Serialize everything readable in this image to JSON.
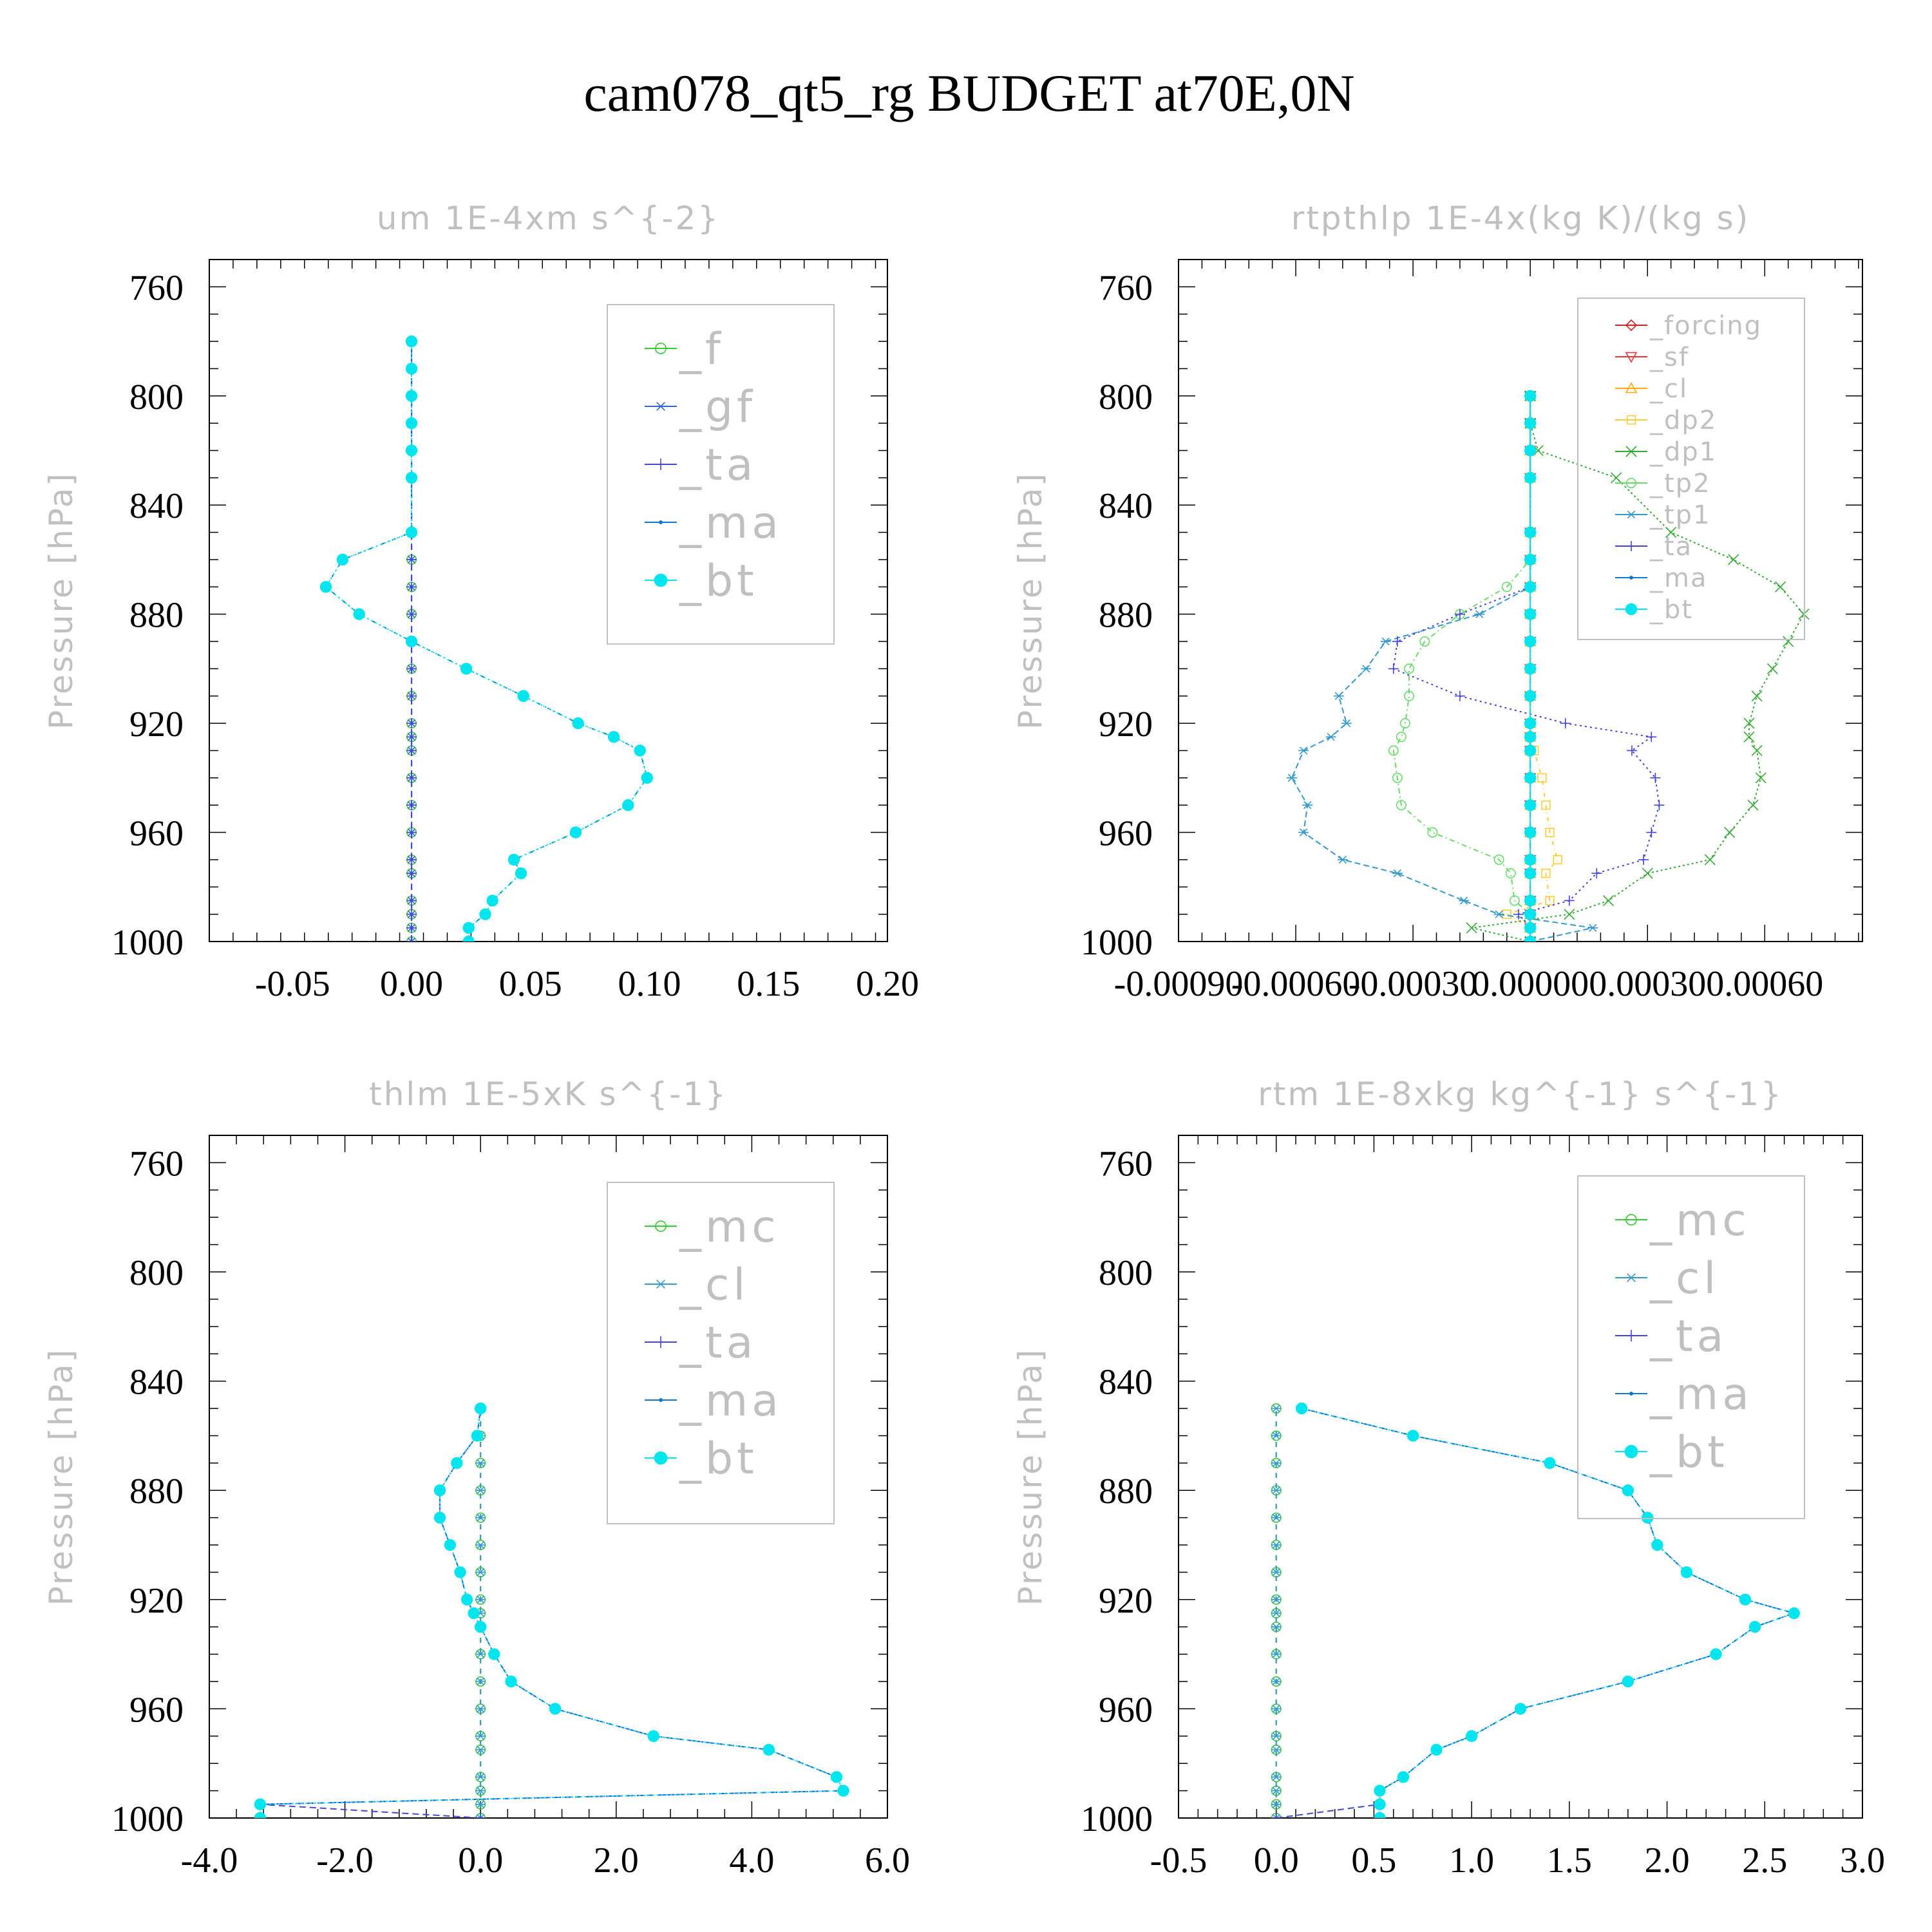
{
  "title": "cam078_qt5_rg  BUDGET at70E,0N",
  "chart_data": [
    {
      "type": "line",
      "title": "um  1E-4xm s^{-2}",
      "ylabel": "Pressure [hPa]",
      "xlabel": "",
      "ylim": [
        1000,
        750
      ],
      "xlim": [
        -0.085,
        0.2
      ],
      "xticks": [
        -0.05,
        0.0,
        0.05,
        0.1,
        0.15,
        0.2
      ],
      "xtick_labels": [
        "-0.05",
        "0.00",
        "0.05",
        "0.10",
        "0.15",
        "0.20"
      ],
      "yticks": [
        760,
        800,
        840,
        880,
        920,
        960,
        1000
      ],
      "ytick_labels": [
        "760",
        "800",
        "840",
        "880",
        "920",
        "960",
        "1000"
      ],
      "legend_position": "top-right",
      "y": [
        1000,
        995,
        990,
        985,
        975,
        970,
        960,
        950,
        940,
        930,
        925,
        920,
        910,
        900,
        890,
        880,
        870,
        860,
        850,
        830,
        820,
        810,
        800,
        790,
        780
      ],
      "series": [
        {
          "name": "_f",
          "color": "#33cc33",
          "marker": "circle-open",
          "values": [
            0,
            0,
            0,
            0,
            0,
            0,
            0,
            0,
            0,
            0,
            0,
            0,
            0,
            0,
            0,
            0,
            0,
            0,
            0,
            0,
            0,
            0,
            0,
            0,
            0
          ]
        },
        {
          "name": "_gf",
          "color": "#3366cc",
          "marker": "asterisk",
          "values": [
            0,
            0,
            0,
            0,
            0,
            0,
            0,
            0,
            0,
            0,
            0,
            0,
            0,
            0,
            0,
            0,
            0,
            0,
            0,
            0,
            0,
            0,
            0,
            0,
            0
          ]
        },
        {
          "name": "_ta",
          "color": "#4444dd",
          "marker": "plus",
          "values": [
            0,
            0,
            0,
            0,
            0,
            0,
            0,
            0,
            0,
            0,
            0,
            0,
            0,
            0,
            0,
            0,
            0,
            0,
            0,
            0,
            0,
            0,
            0,
            0,
            0
          ]
        },
        {
          "name": "_ma",
          "color": "#1177cc",
          "marker": "dot",
          "values": [
            0.024,
            0.024,
            0.031,
            0.034,
            0.046,
            0.043,
            0.069,
            0.091,
            0.099,
            0.096,
            0.085,
            0.07,
            0.047,
            0.023,
            0.0,
            -0.022,
            -0.036,
            -0.029,
            0.0,
            0.0,
            0.0,
            0.0,
            0.0,
            0.0,
            0.0
          ]
        },
        {
          "name": "_bt",
          "color": "#00e5ee",
          "marker": "disc",
          "values": [
            0.024,
            0.024,
            0.031,
            0.034,
            0.046,
            0.043,
            0.069,
            0.091,
            0.099,
            0.096,
            0.085,
            0.07,
            0.047,
            0.023,
            0.0,
            -0.022,
            -0.036,
            -0.029,
            0.0,
            0.0,
            0.0,
            0.0,
            0.0,
            0.0,
            0.0
          ]
        }
      ]
    },
    {
      "type": "line",
      "title": "rtpthlp  1E-4x(kg K)/(kg s)",
      "ylabel": "Pressure [hPa]",
      "xlabel": "",
      "ylim": [
        1000,
        750
      ],
      "xlim": [
        -0.0009,
        0.00085
      ],
      "xticks": [
        -0.0009,
        -0.0006,
        -0.0003,
        0.0,
        0.0003,
        0.0006
      ],
      "xtick_labels": [
        "-0.00090",
        "-0.00060",
        "-0.00030",
        "0.00000",
        "0.00030",
        "0.00060"
      ],
      "yticks": [
        760,
        800,
        840,
        880,
        920,
        960,
        1000
      ],
      "ytick_labels": [
        "760",
        "800",
        "840",
        "880",
        "920",
        "960",
        "1000"
      ],
      "legend_position": "top-right",
      "y": [
        1000,
        995,
        990,
        985,
        975,
        970,
        960,
        950,
        940,
        930,
        925,
        920,
        910,
        900,
        890,
        880,
        870,
        860,
        850,
        830,
        820,
        810,
        800
      ],
      "series": [
        {
          "name": "_forcing",
          "color": "#cc2222",
          "marker": "diamond",
          "values": [
            0,
            0,
            0,
            0,
            0,
            0,
            0,
            0,
            0,
            0,
            0,
            0,
            0,
            0,
            0,
            0,
            0,
            0,
            0,
            0,
            0,
            0,
            0
          ]
        },
        {
          "name": "_sf",
          "color": "#ee3333",
          "marker": "triangle-down",
          "values": [
            0,
            0,
            0,
            0,
            0,
            0,
            0,
            0,
            0,
            0,
            0,
            0,
            0,
            0,
            0,
            0,
            0,
            0,
            0,
            0,
            0,
            0,
            0
          ]
        },
        {
          "name": "_cl",
          "color": "#ffaa00",
          "marker": "triangle-up",
          "values": [
            0,
            0,
            0,
            0,
            0,
            0,
            0,
            0,
            0,
            0,
            0,
            0,
            0,
            0,
            0,
            0,
            0,
            0,
            0,
            0,
            0,
            0,
            0
          ]
        },
        {
          "name": "_dp2",
          "color": "#ffcc33",
          "marker": "square",
          "values": [
            0,
            0,
            -6e-05,
            5e-05,
            4e-05,
            7e-05,
            5e-05,
            4e-05,
            3e-05,
            1e-05,
            0,
            0,
            0,
            0,
            0,
            0,
            0,
            0,
            0,
            0,
            0,
            0,
            0
          ]
        },
        {
          "name": "_dp1",
          "color": "#33aa33",
          "marker": "cross",
          "values": [
            0,
            -0.00015,
            0.0001,
            0.0002,
            0.0003,
            0.00046,
            0.00051,
            0.00057,
            0.00059,
            0.00058,
            0.00056,
            0.00056,
            0.00058,
            0.00062,
            0.00066,
            0.0007,
            0.00064,
            0.00052,
            0.00036,
            0.00022,
            2e-05,
            0.0,
            0.0
          ]
        },
        {
          "name": "_tp2",
          "color": "#66dd66",
          "marker": "circle-open",
          "values": [
            0,
            0,
            0,
            -4e-05,
            -5e-05,
            -8e-05,
            -0.00025,
            -0.00033,
            -0.00034,
            -0.00035,
            -0.00033,
            -0.00032,
            -0.00031,
            -0.00031,
            -0.00027,
            -0.00018,
            -6e-05,
            0.0,
            0.0,
            0.0,
            0.0,
            0.0,
            0.0
          ]
        },
        {
          "name": "_tp1",
          "color": "#3399cc",
          "marker": "asterisk",
          "values": [
            0,
            0.00016,
            -8e-05,
            -0.00017,
            -0.00034,
            -0.00048,
            -0.00058,
            -0.00057,
            -0.00061,
            -0.00058,
            -0.00051,
            -0.00047,
            -0.00049,
            -0.00042,
            -0.00037,
            -0.00013,
            0.0,
            0.0,
            0.0,
            0.0,
            0.0,
            0.0,
            0.0
          ]
        },
        {
          "name": "_ta",
          "color": "#4444dd",
          "marker": "plus",
          "values": [
            0,
            0,
            -3e-05,
            0.0001,
            0.00017,
            0.00029,
            0.00031,
            0.00033,
            0.00032,
            0.00026,
            0.00031,
            9e-05,
            -0.00018,
            -0.00035,
            -0.00034,
            -0.00018,
            0.0,
            0.0,
            0.0,
            0.0,
            0.0,
            0.0,
            0.0
          ]
        },
        {
          "name": "_ma",
          "color": "#1177cc",
          "marker": "dot",
          "values": [
            0,
            0,
            0,
            0,
            0,
            0,
            0,
            0,
            0,
            0,
            0,
            0,
            0,
            0,
            0,
            0,
            0,
            0,
            0,
            0,
            0,
            0,
            0
          ]
        },
        {
          "name": "_bt",
          "color": "#00e5ee",
          "marker": "disc",
          "values": [
            0,
            0,
            0,
            0,
            0,
            0,
            0,
            0,
            0,
            0,
            0,
            0,
            0,
            0,
            0,
            0,
            0,
            0,
            0,
            0,
            0,
            0,
            0
          ]
        }
      ]
    },
    {
      "type": "line",
      "title": "thlm  1E-5xK s^{-1}",
      "ylabel": "Pressure [hPa]",
      "xlabel": "",
      "ylim": [
        1000,
        750
      ],
      "xlim": [
        -4.0,
        6.0
      ],
      "xticks": [
        -4.0,
        -2.0,
        0.0,
        2.0,
        4.0,
        6.0
      ],
      "xtick_labels": [
        "-4.0",
        "-2.0",
        "0.0",
        "2.0",
        "4.0",
        "6.0"
      ],
      "yticks": [
        760,
        800,
        840,
        880,
        920,
        960,
        1000
      ],
      "ytick_labels": [
        "760",
        "800",
        "840",
        "880",
        "920",
        "960",
        "1000"
      ],
      "legend_position": "top-right",
      "y": [
        1000,
        995,
        990,
        985,
        975,
        970,
        960,
        950,
        940,
        930,
        925,
        920,
        910,
        900,
        890,
        880,
        870,
        860,
        850
      ],
      "series": [
        {
          "name": "_mc",
          "color": "#33cc33",
          "marker": "circle-open",
          "values": [
            0,
            0,
            0,
            0,
            0,
            0,
            0,
            0,
            0,
            0,
            0,
            0,
            0,
            0,
            0,
            0,
            0,
            0,
            0
          ]
        },
        {
          "name": "_cl",
          "color": "#3399cc",
          "marker": "asterisk",
          "values": [
            0,
            0,
            0,
            0,
            0,
            0,
            0,
            0,
            0,
            0,
            0,
            0,
            0,
            0,
            0,
            0,
            0,
            0,
            0
          ]
        },
        {
          "name": "_ta",
          "color": "#4444dd",
          "marker": "plus",
          "values": [
            0,
            -3.25,
            5.35,
            5.25,
            4.25,
            2.55,
            1.1,
            0.45,
            0.2,
            0.0,
            -0.1,
            -0.2,
            -0.3,
            -0.45,
            -0.6,
            -0.6,
            -0.35,
            -0.05,
            0.0
          ]
        },
        {
          "name": "_ma",
          "color": "#1177cc",
          "marker": "dot",
          "values": [
            -3.25,
            -3.25,
            5.35,
            5.25,
            4.25,
            2.55,
            1.1,
            0.45,
            0.2,
            0.0,
            -0.1,
            -0.2,
            -0.3,
            -0.45,
            -0.6,
            -0.6,
            -0.35,
            -0.05,
            0.0
          ]
        },
        {
          "name": "_bt",
          "color": "#00e5ee",
          "marker": "disc",
          "values": [
            -3.25,
            -3.25,
            5.35,
            5.25,
            4.25,
            2.55,
            1.1,
            0.45,
            0.2,
            0.0,
            -0.1,
            -0.2,
            -0.3,
            -0.45,
            -0.6,
            -0.6,
            -0.35,
            -0.05,
            0.0
          ]
        }
      ]
    },
    {
      "type": "line",
      "title": "rtm  1E-8xkg kg^{-1} s^{-1}",
      "ylabel": "Pressure [hPa]",
      "xlabel": "",
      "ylim": [
        1000,
        750
      ],
      "xlim": [
        -0.5,
        3.0
      ],
      "xticks": [
        -0.5,
        0.0,
        0.5,
        1.0,
        1.5,
        2.0,
        2.5,
        3.0
      ],
      "xtick_labels": [
        "-0.5",
        "0.0",
        "0.5",
        "1.0",
        "1.5",
        "2.0",
        "2.5",
        "3.0"
      ],
      "yticks": [
        760,
        800,
        840,
        880,
        920,
        960,
        1000
      ],
      "ytick_labels": [
        "760",
        "800",
        "840",
        "880",
        "920",
        "960",
        "1000"
      ],
      "legend_position": "top-right",
      "y": [
        1000,
        995,
        990,
        985,
        975,
        970,
        960,
        950,
        940,
        930,
        925,
        920,
        910,
        900,
        890,
        880,
        870,
        860,
        850
      ],
      "series": [
        {
          "name": "_mc",
          "color": "#33cc33",
          "marker": "circle-open",
          "values": [
            0,
            0,
            0,
            0,
            0,
            0,
            0,
            0,
            0,
            0,
            0,
            0,
            0,
            0,
            0,
            0,
            0,
            0,
            0
          ]
        },
        {
          "name": "_cl",
          "color": "#3399cc",
          "marker": "asterisk",
          "values": [
            0,
            0,
            0,
            0,
            0,
            0,
            0,
            0,
            0,
            0,
            0,
            0,
            0,
            0,
            0,
            0,
            0,
            0,
            0
          ]
        },
        {
          "name": "_ta",
          "color": "#4444dd",
          "marker": "plus",
          "values": [
            0,
            0.53,
            0.53,
            0.65,
            0.82,
            1.0,
            1.25,
            1.8,
            2.25,
            2.45,
            2.65,
            2.4,
            2.1,
            1.95,
            1.9,
            1.8,
            1.4,
            0.7,
            0.13
          ]
        },
        {
          "name": "_ma",
          "color": "#1177cc",
          "marker": "dot",
          "values": [
            0.53,
            0.53,
            0.53,
            0.65,
            0.82,
            1.0,
            1.25,
            1.8,
            2.25,
            2.45,
            2.65,
            2.4,
            2.1,
            1.95,
            1.9,
            1.8,
            1.4,
            0.7,
            0.13
          ]
        },
        {
          "name": "_bt",
          "color": "#00e5ee",
          "marker": "disc",
          "values": [
            0.53,
            0.53,
            0.53,
            0.65,
            0.82,
            1.0,
            1.25,
            1.8,
            2.25,
            2.45,
            2.65,
            2.4,
            2.1,
            1.95,
            1.9,
            1.8,
            1.4,
            0.7,
            0.13
          ]
        }
      ]
    }
  ]
}
